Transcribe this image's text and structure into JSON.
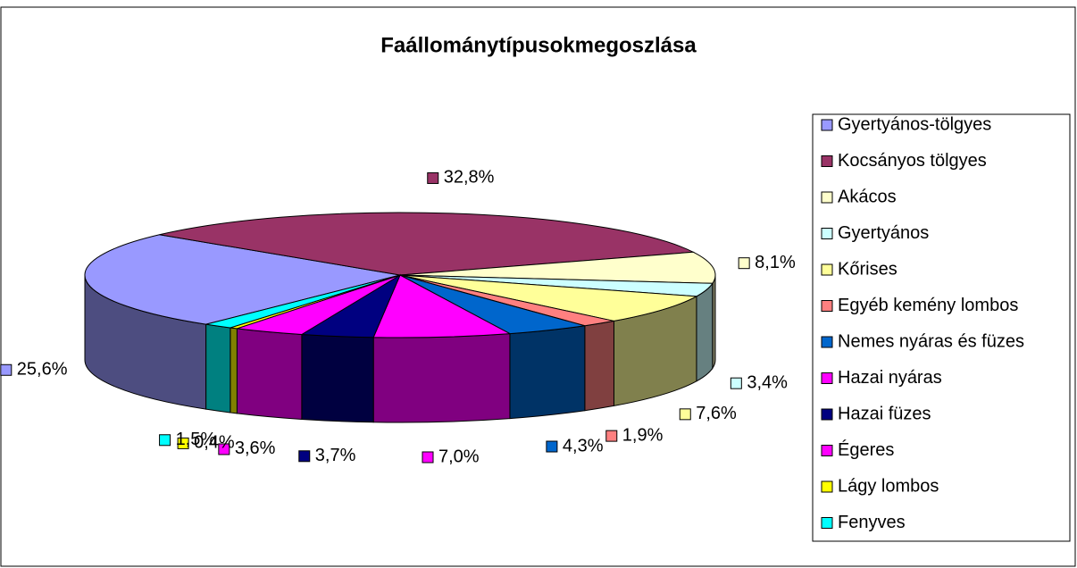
{
  "chart_data": {
    "type": "pie3d",
    "title": "Faállománytípusokmegoszlása",
    "categories": [
      "Gyertyános-tölgyes",
      "Kocsányos tölgyes",
      "Akácos",
      "Gyertyános",
      "Kőrises",
      "Egyéb kemény lombos",
      "Nemes nyáras és füzes",
      "Hazai nyáras",
      "Hazai füzes",
      "Égeres",
      "Lágy lombos",
      "Fenyves"
    ],
    "values": [
      25.6,
      32.8,
      8.1,
      3.4,
      7.6,
      1.9,
      4.3,
      7.0,
      3.7,
      3.6,
      0.4,
      1.5
    ],
    "value_labels": [
      "25,6%",
      "32,8%",
      "8,1%",
      "3,4%",
      "7,6%",
      "1,9%",
      "4,3%",
      "7,0%",
      "3,7%",
      "3,6%",
      "0,4%",
      "1,5%"
    ],
    "colors": [
      "#9999ff",
      "#993366",
      "#ffffcc",
      "#ccffff",
      "#ffff99",
      "#ff8080",
      "#0066cc",
      "#ff00ff",
      "#000080",
      "#ff00ff",
      "#ffff00",
      "#00ffff"
    ],
    "legend": "right"
  }
}
